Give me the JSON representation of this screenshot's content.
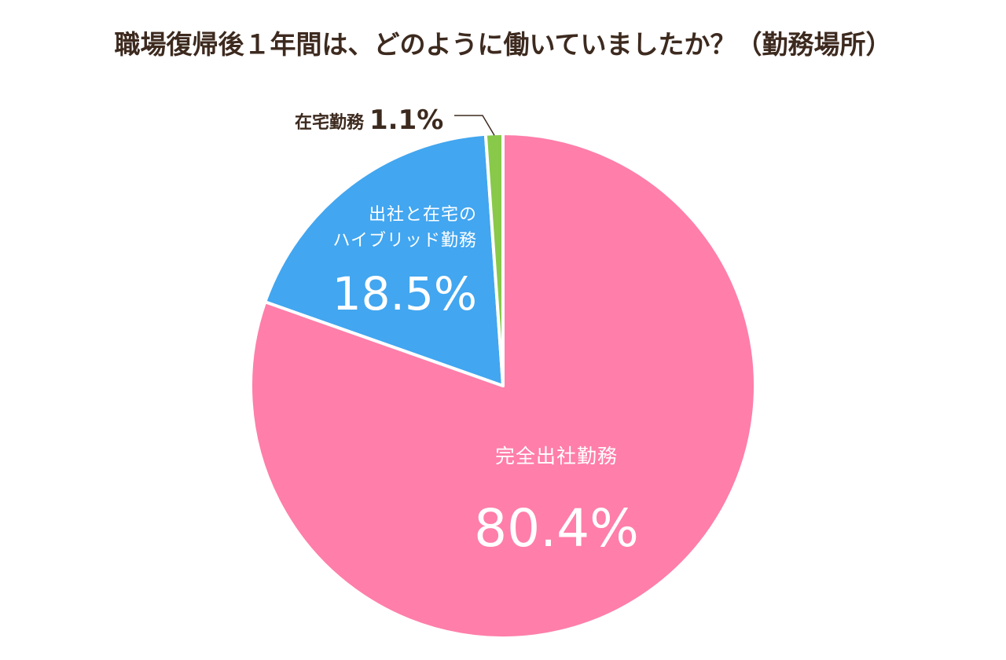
{
  "chart_data": {
    "type": "pie",
    "title": "職場復帰後１年間は、どのように働いていましたか？（勤務場所）",
    "slices": [
      {
        "label_lines": [
          "完全出社勤務"
        ],
        "value": 80.4,
        "value_label": "80.4%",
        "color": "#ff7eaa",
        "label_position": "inside"
      },
      {
        "label_lines": [
          "出社と在宅の",
          "ハイブリッド勤務"
        ],
        "value": 18.5,
        "value_label": "18.5%",
        "color": "#42a6f0",
        "label_position": "inside"
      },
      {
        "label_lines": [
          "在宅勤務"
        ],
        "value": 1.1,
        "value_label": "1.1%",
        "color": "#88c94a",
        "label_position": "outside-with-leader"
      }
    ],
    "start_angle": "12 o'clock",
    "direction": "clockwise",
    "legend": "none"
  }
}
